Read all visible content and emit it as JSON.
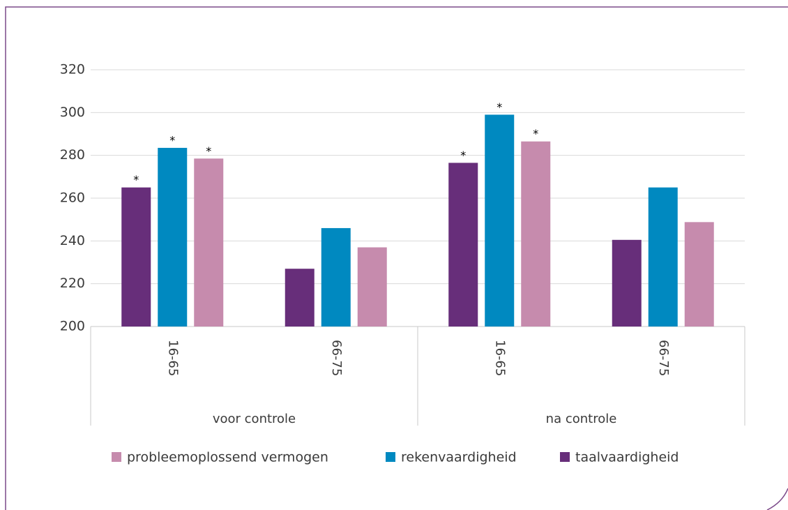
{
  "chart_data": {
    "type": "bar",
    "groups": [
      {
        "label": "voor controle",
        "categories": [
          "16-65",
          "66-75"
        ]
      },
      {
        "label": "na controle",
        "categories": [
          "16-65",
          "66-75"
        ]
      }
    ],
    "series": [
      {
        "name": "probleemoplossend vermogen",
        "color": "#c68bad",
        "values": [
          278.5,
          237,
          286.5,
          248.8
        ],
        "significance": [
          "*",
          null,
          "*",
          null
        ]
      },
      {
        "name": "rekenvaardigheid",
        "color": "#0089c0",
        "values": [
          283.5,
          246,
          299,
          265
        ],
        "significance": [
          "*",
          null,
          "*",
          null
        ]
      },
      {
        "name": "taalvaardigheid",
        "color": "#672e7a",
        "values": [
          265,
          227,
          276.5,
          240.5
        ],
        "significance": [
          "*",
          null,
          "*",
          null
        ]
      }
    ],
    "ylim": [
      200,
      320
    ],
    "yticks": [
      200,
      220,
      240,
      260,
      280,
      300,
      320
    ],
    "grid": true
  }
}
